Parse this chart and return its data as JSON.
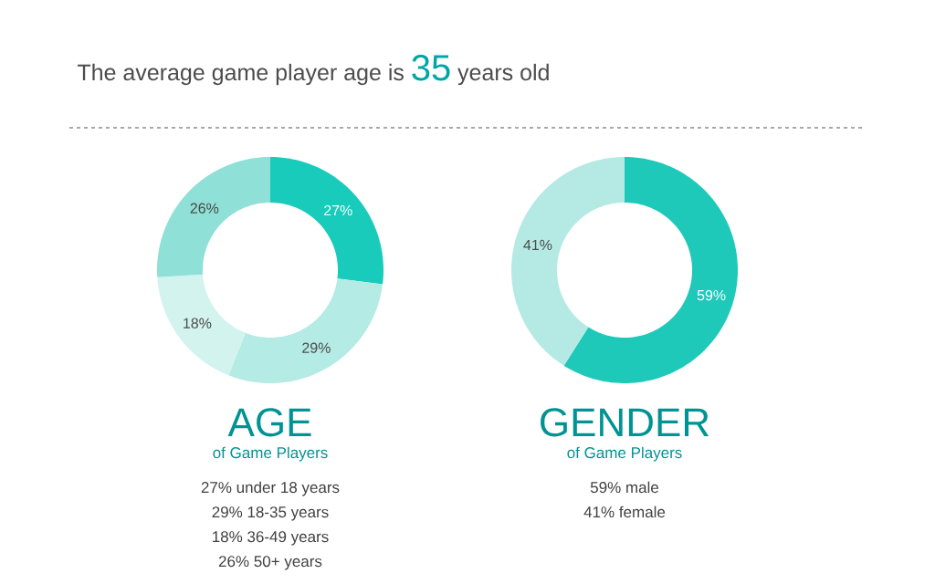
{
  "chart_data": [
    {
      "type": "other",
      "annotations": [
        "The average game player age is",
        "35",
        "years old"
      ]
    },
    {
      "type": "donut",
      "title": "AGE",
      "subtitle": "of Game Players",
      "categories": [
        null,
        null,
        null,
        null
      ],
      "values": [
        27,
        29,
        18,
        26
      ],
      "colors": [
        "#19cbbb",
        "#b5ebe5",
        "#d3f3ef",
        "#8fe0d6"
      ],
      "value_labels": [
        "27%",
        "29%",
        "18%",
        "26%"
      ],
      "annotations": [
        "27% under 18 years",
        "29% 18-35 years",
        "18% 36-49 years",
        "26% 50+ years"
      ]
    },
    {
      "type": "donut",
      "title": "GENDER",
      "subtitle": "of Game Players",
      "categories": [
        null,
        null
      ],
      "values": [
        59,
        41
      ],
      "colors": [
        "#1fc9b9",
        "#b5eae4"
      ],
      "value_labels": [
        "59%",
        "41%"
      ],
      "annotations": [
        "59% male",
        "41% female"
      ]
    }
  ]
}
